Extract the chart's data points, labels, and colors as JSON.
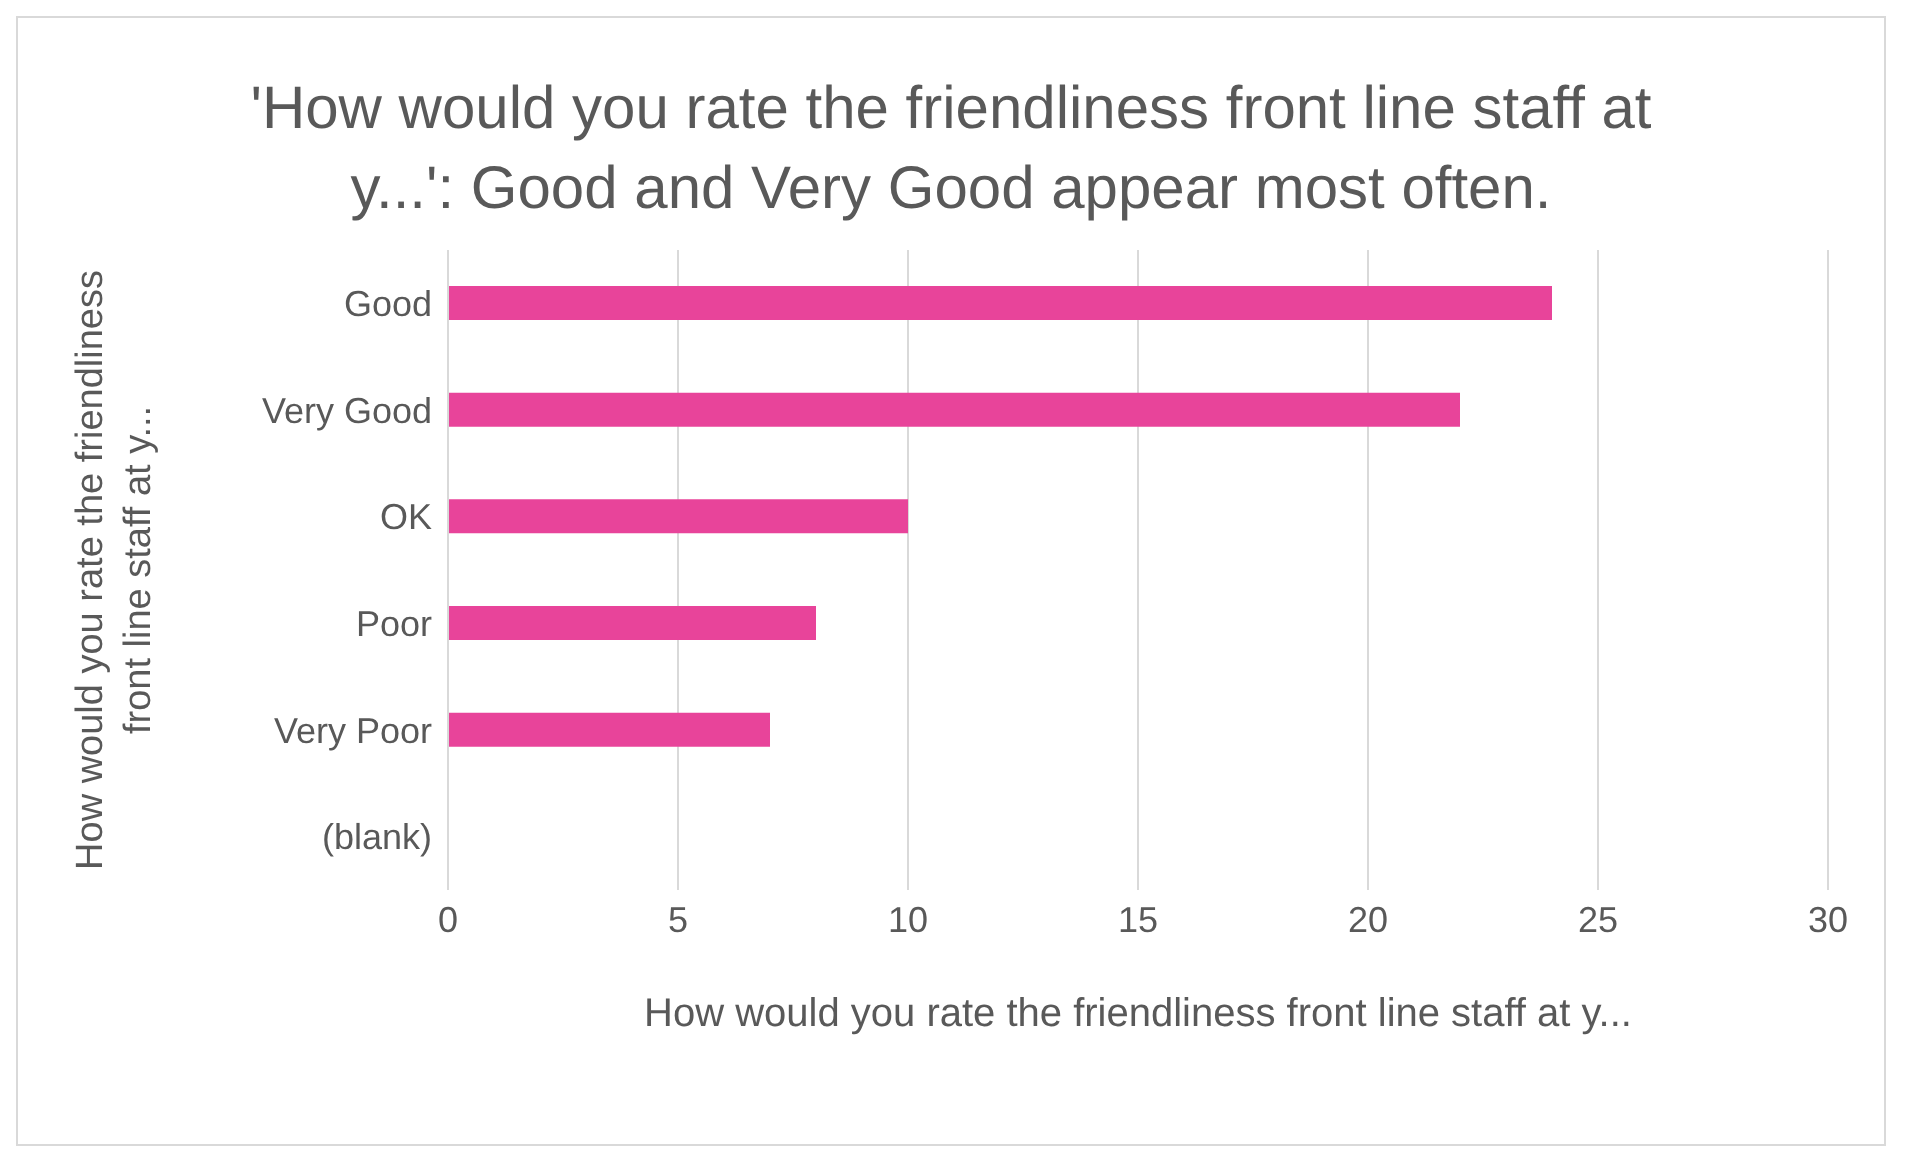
{
  "chart_data": {
    "type": "bar",
    "orientation": "horizontal",
    "title": "'How would you rate the friendliness front line staff at y...': Good and Very Good appear most often.",
    "xlabel": "How would you rate the friendliness front line staff at y...",
    "ylabel": "How would you rate the friendliness front line staff at y...",
    "categories": [
      "Good",
      "Very Good",
      "OK",
      "Poor",
      "Very Poor",
      "(blank)"
    ],
    "values": [
      24,
      22,
      10,
      8,
      7,
      null
    ],
    "color": "#e8449a",
    "xlim": [
      0,
      30
    ],
    "xticks": [
      0,
      5,
      10,
      15,
      20,
      25,
      30
    ],
    "grid": "x",
    "legend": false
  }
}
